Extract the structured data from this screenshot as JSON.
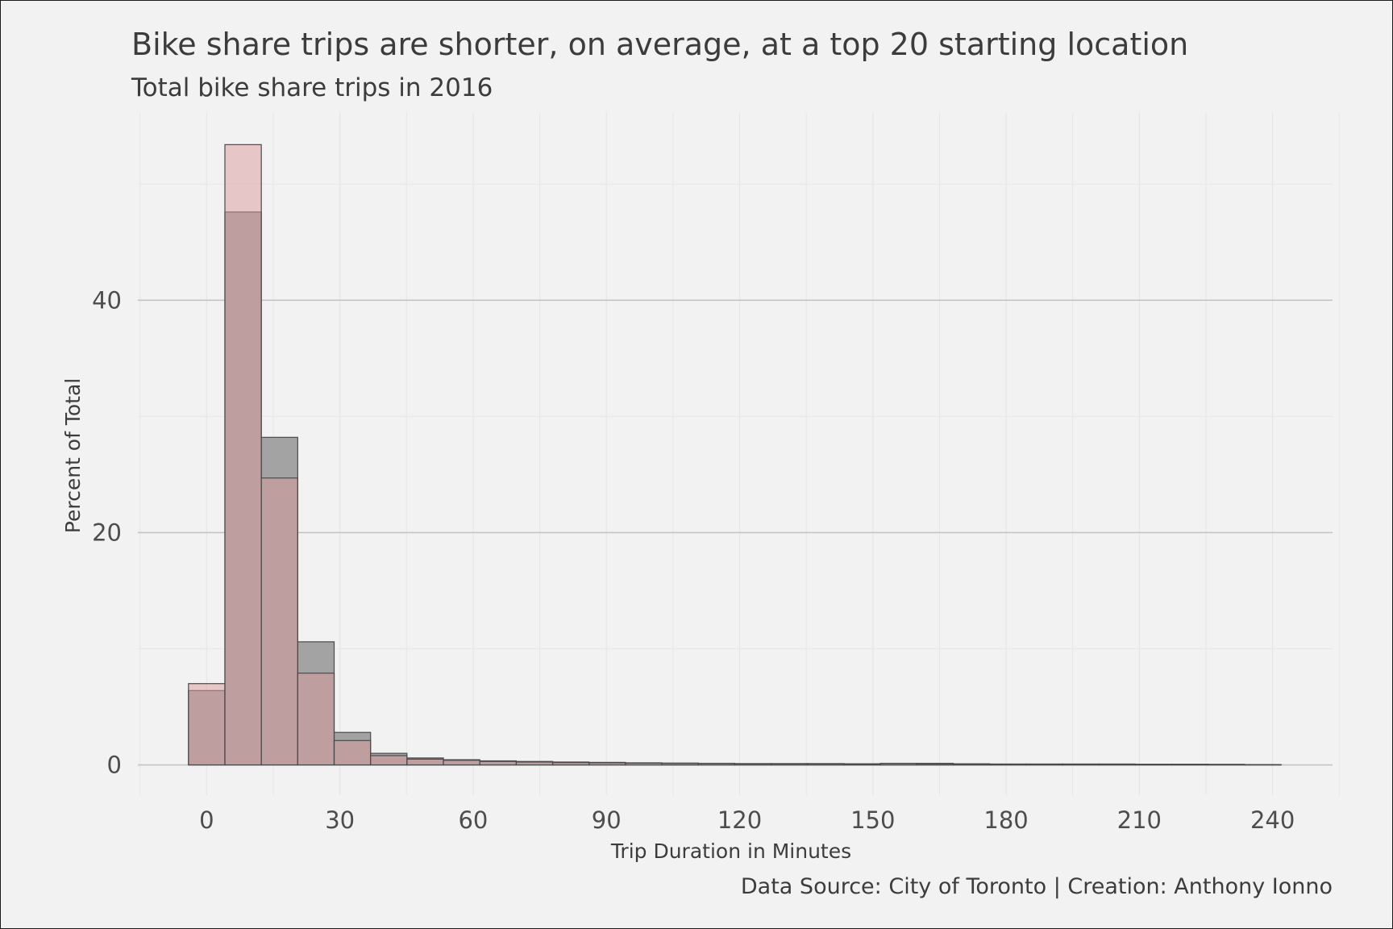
{
  "chart_data": {
    "type": "bar",
    "title": "Bike share trips are shorter, on average, at a top 20 starting location",
    "subtitle": "Total bike share trips in 2016",
    "xlabel": "Trip Duration in Minutes",
    "ylabel": "Percent of Total",
    "caption": "Data Source: City of Toronto | Creation: Anthony Ionno",
    "x_ticks": [
      0,
      30,
      60,
      90,
      120,
      150,
      180,
      210,
      240
    ],
    "x_tick_labels": [
      "0",
      "30",
      "60",
      "90",
      "120",
      "150",
      "180",
      "210",
      "240"
    ],
    "y_ticks": [
      0,
      20,
      40
    ],
    "y_tick_labels": [
      "0",
      "20",
      "40"
    ],
    "xlim": [
      -15.5,
      253.5
    ],
    "ylim": [
      -2.6,
      56.2
    ],
    "grid": true,
    "bin_width": 8.2,
    "bin_centers": [
      0,
      8.2,
      16.4,
      24.6,
      32.8,
      41,
      49.2,
      57.4,
      65.6,
      73.8,
      82,
      90.2,
      98.4,
      106.6,
      114.8,
      123,
      131.2,
      139.4,
      147.6,
      155.8,
      164,
      172.2,
      180.4,
      188.6,
      196.8,
      205,
      213.2,
      221.4,
      229.6,
      237.8
    ],
    "series": [
      {
        "color": "#a3a3a3",
        "values": [
          6.4,
          47.6,
          28.2,
          10.6,
          2.8,
          1.0,
          0.6,
          0.45,
          0.35,
          0.3,
          0.25,
          0.22,
          0.18,
          0.16,
          0.14,
          0.12,
          0.12,
          0.12,
          0.1,
          0.14,
          0.14,
          0.1,
          0.08,
          0.08,
          0.08,
          0.08,
          0.06,
          0.06,
          0.05,
          0.03
        ]
      },
      {
        "color": "#d99a9a",
        "values": [
          7.0,
          53.4,
          24.7,
          7.9,
          2.1,
          0.8,
          0.5,
          0.4,
          0.3,
          0.25,
          0.2,
          0.18,
          0.15,
          0.13,
          0.12,
          0.1,
          0.1,
          0.1,
          0.08,
          0.12,
          0.1,
          0.08,
          0.06,
          0.06,
          0.06,
          0.05,
          0.05,
          0.05,
          0.04,
          0.02
        ]
      }
    ]
  }
}
